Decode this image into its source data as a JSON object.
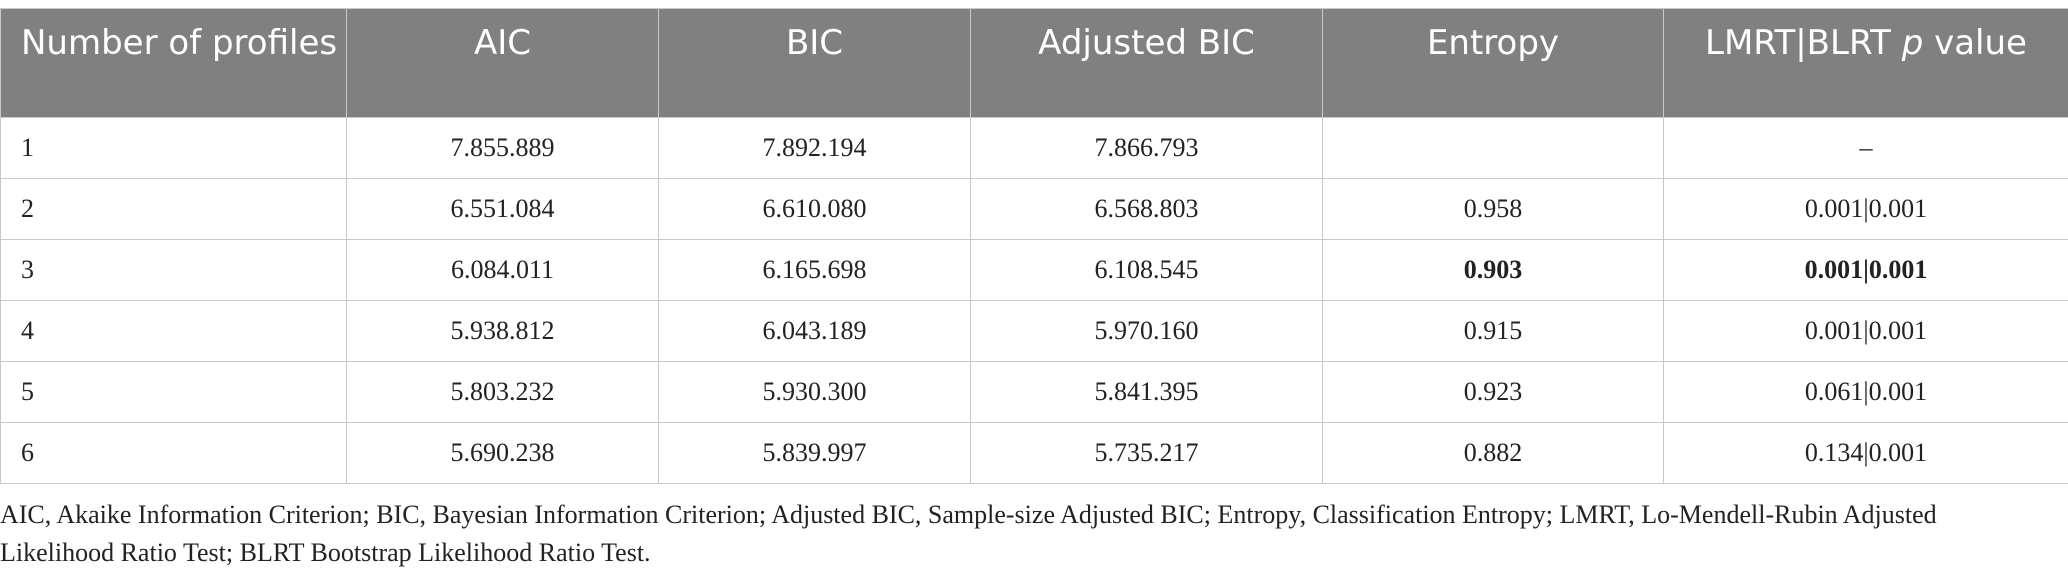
{
  "table": {
    "headers": {
      "profiles": "Number of profiles",
      "aic": "AIC",
      "bic": "BIC",
      "adj_bic": "Adjusted BIC",
      "entropy": "Entropy",
      "lmrt_prefix": "LMRT|BLRT ",
      "lmrt_p": "p",
      "lmrt_suffix": " value"
    },
    "rows": [
      {
        "profiles": "1",
        "aic": "7.855.889",
        "bic": "7.892.194",
        "adj_bic": "7.866.793",
        "entropy": "",
        "lmrt": "–"
      },
      {
        "profiles": "2",
        "aic": "6.551.084",
        "bic": "6.610.080",
        "adj_bic": "6.568.803",
        "entropy": "0.958",
        "lmrt": "0.001|0.001"
      },
      {
        "profiles": "3",
        "aic": "6.084.011",
        "bic": "6.165.698",
        "adj_bic": "6.108.545",
        "entropy": "0.903",
        "lmrt": "0.001|0.001"
      },
      {
        "profiles": "4",
        "aic": "5.938.812",
        "bic": "6.043.189",
        "adj_bic": "5.970.160",
        "entropy": "0.915",
        "lmrt": "0.001|0.001"
      },
      {
        "profiles": "5",
        "aic": "5.803.232",
        "bic": "5.930.300",
        "adj_bic": "5.841.395",
        "entropy": "0.923",
        "lmrt": "0.061|0.001"
      },
      {
        "profiles": "6",
        "aic": "5.690.238",
        "bic": "5.839.997",
        "adj_bic": "5.735.217",
        "entropy": "0.882",
        "lmrt": "0.134|0.001"
      }
    ]
  },
  "footnote": "AIC, Akaike Information Criterion; BIC, Bayesian Information Criterion; Adjusted BIC, Sample-size Adjusted BIC; Entropy, Classification Entropy; LMRT, Lo-Mendell-Rubin Adjusted Likelihood Ratio Test; BLRT Bootstrap Likelihood Ratio Test.",
  "colors": {
    "header_bg": "#808080",
    "header_text": "#ffffff",
    "border": "#c9c9c9"
  }
}
